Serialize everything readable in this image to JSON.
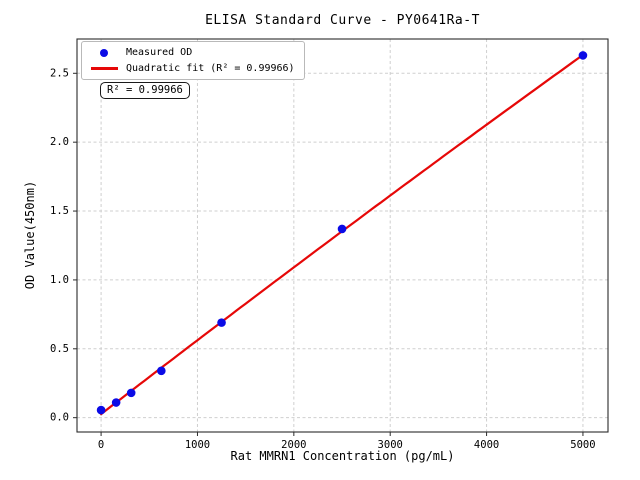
{
  "figure": {
    "title": "ELISA Standard Curve - PY0641Ra-T",
    "annotation": "R² = 0.99966"
  },
  "legend": {
    "position": "upper left",
    "items": [
      {
        "label": "Measured OD",
        "marker": "dot"
      },
      {
        "label": "Quadratic fit (R² = 0.99966)",
        "marker": "line"
      }
    ]
  },
  "chart_data": {
    "type": "scatter",
    "title": "ELISA Standard Curve - PY0641Ra-T",
    "xlabel": "Rat MMRN1 Concentration (pg/mL)",
    "ylabel": "OD Value(450nm)",
    "xlim": [
      -250,
      5260
    ],
    "ylim": [
      -0.104,
      2.749
    ],
    "x_ticks": [
      0,
      1000,
      2000,
      3000,
      4000,
      5000
    ],
    "x_tick_labels": [
      "0",
      "1000",
      "2000",
      "3000",
      "4000",
      "5000"
    ],
    "y_ticks": [
      0.0,
      0.5,
      1.0,
      1.5,
      2.0,
      2.5
    ],
    "y_tick_labels": [
      "0.0",
      "0.5",
      "1.0",
      "1.5",
      "2.0",
      "2.5"
    ],
    "grid": true,
    "grid_style": "dashed",
    "legend_position": "upper left",
    "r_squared": 0.99966,
    "colors": {
      "scatter": "#0b0bE6",
      "fit_line": "#e60808",
      "grid": "#cfcfcf",
      "spine": "#2b2b2b",
      "text": "#000000"
    },
    "series": [
      {
        "name": "Measured OD",
        "type": "scatter",
        "x": [
          0,
          156.25,
          312.5,
          625,
          1250,
          2500,
          5000
        ],
        "y": [
          0.055,
          0.11,
          0.18,
          0.34,
          0.69,
          1.37,
          2.63
        ]
      },
      {
        "name": "Quadratic fit (R² = 0.99966)",
        "type": "line",
        "fit": "quadratic",
        "coeffs": [
          -3.6858e-09,
          0.000539906,
          0.026162
        ],
        "x_range": [
          0,
          5000
        ],
        "r_squared": 0.99966
      }
    ]
  }
}
